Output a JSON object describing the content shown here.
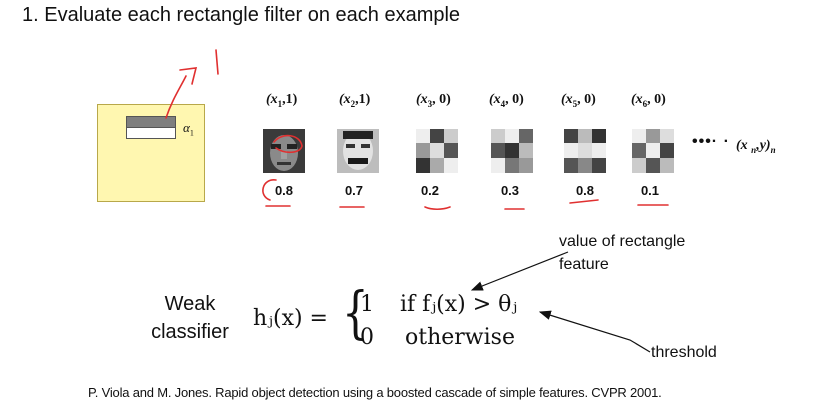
{
  "title": "1. Evaluate each rectangle filter on each example",
  "filter": {
    "alpha_label": "α",
    "alpha_sub": "1"
  },
  "examples": [
    {
      "x": "(x",
      "sub": "1",
      "y": ",1)",
      "score": "0.8"
    },
    {
      "x": "(x",
      "sub": "2",
      "y": ",1)",
      "score": "0.7"
    },
    {
      "x": "(x",
      "sub": "3",
      "y": ", 0)",
      "score": "0.2"
    },
    {
      "x": "(x",
      "sub": "4",
      "y": ", 0)",
      "score": "0.3"
    },
    {
      "x": "(x",
      "sub": "5",
      "y": ", 0)",
      "score": "0.8"
    },
    {
      "x": "(x",
      "sub": "6",
      "y": ", 0)",
      "score": "0.1"
    }
  ],
  "ellipsis": "•••· ·",
  "last_example": {
    "open": "(x ",
    "sub_n": "n",
    "mid": ",y)",
    "sub_n2": "n"
  },
  "weak_classifier": {
    "line1": "Weak",
    "line2": "classifier"
  },
  "formula": {
    "lhs": "hⱼ(x) =",
    "brace": "{",
    "row1_value": "1",
    "row1_condition": "if  fⱼ(x) > θⱼ",
    "row2_value": "0",
    "row2_condition": "otherwise"
  },
  "annotations": {
    "feature_line1": "value of rectangle",
    "feature_line2": "feature",
    "threshold": "threshold"
  },
  "citation": "P. Viola and M. Jones. Rapid object detection using a boosted cascade of simple features. CVPR 2001.",
  "colors": {
    "filter_fill": "#fff7b0",
    "handwriting": "#e03030"
  }
}
